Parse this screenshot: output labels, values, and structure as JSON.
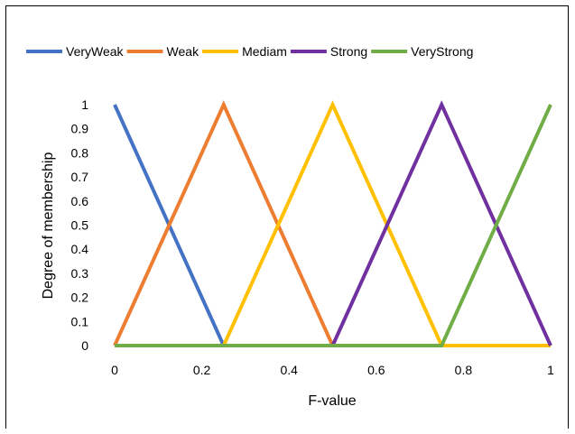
{
  "chart_data": {
    "type": "line",
    "title": "",
    "xlabel": "F-value",
    "ylabel": "Degree of membership",
    "xlim": [
      0,
      1
    ],
    "ylim": [
      0,
      1
    ],
    "x_ticks": [
      "0",
      "0.2",
      "0.4",
      "0.6",
      "0.8",
      "1"
    ],
    "x_tick_values": [
      0,
      0.2,
      0.4,
      0.6,
      0.8,
      1
    ],
    "y_ticks": [
      "0",
      "0.1",
      "0.2",
      "0.3",
      "0.4",
      "0.5",
      "0.6",
      "0.7",
      "0.8",
      "0.9",
      "1"
    ],
    "y_tick_values": [
      0,
      0.1,
      0.2,
      0.3,
      0.4,
      0.5,
      0.6,
      0.7,
      0.8,
      0.9,
      1
    ],
    "grid": false,
    "legend_position": "top",
    "series": [
      {
        "name": "VeryWeak",
        "color": "#4472C4",
        "x": [
          0,
          0.25,
          0.5,
          0.75,
          1
        ],
        "y": [
          1,
          0,
          0,
          0,
          0
        ]
      },
      {
        "name": "Weak",
        "color": "#ED7D31",
        "x": [
          0,
          0.25,
          0.5,
          0.75,
          1
        ],
        "y": [
          0,
          1,
          0,
          0,
          0
        ]
      },
      {
        "name": "Mediam",
        "color": "#FFC000",
        "x": [
          0,
          0.25,
          0.5,
          0.75,
          1
        ],
        "y": [
          0,
          0,
          1,
          0,
          0
        ]
      },
      {
        "name": "Strong",
        "color": "#7030A0",
        "x": [
          0,
          0.25,
          0.5,
          0.75,
          1
        ],
        "y": [
          0,
          0,
          0,
          1,
          0
        ]
      },
      {
        "name": "VeryStrong",
        "color": "#70AD47",
        "x": [
          0,
          0.25,
          0.5,
          0.75,
          1
        ],
        "y": [
          0,
          0,
          0,
          0,
          1
        ]
      }
    ]
  }
}
